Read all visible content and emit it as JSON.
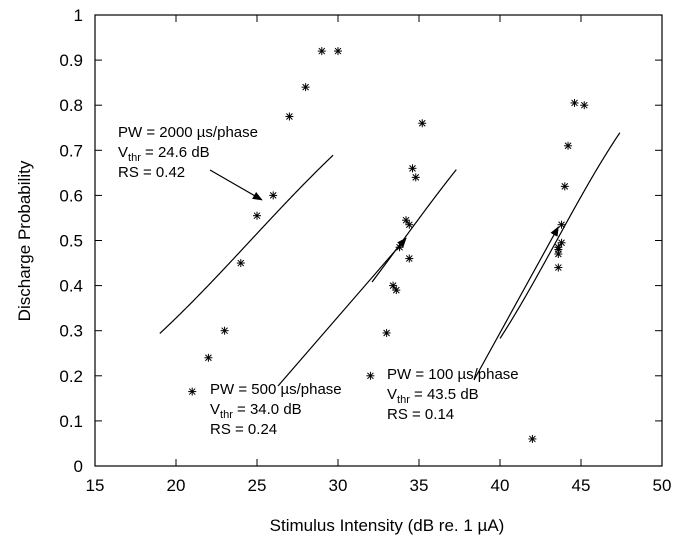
{
  "chart_data": {
    "type": "scatter",
    "xlabel": "Stimulus Intensity (dB re. 1 µA)",
    "ylabel": "Discharge Probability",
    "xlim": [
      15,
      50
    ],
    "ylim": [
      0,
      1
    ],
    "xticks": [
      "15",
      "20",
      "25",
      "30",
      "35",
      "40",
      "45",
      "50"
    ],
    "yticks": [
      "0",
      "0.1",
      "0.2",
      "0.3",
      "0.4",
      "0.5",
      "0.6",
      "0.7",
      "0.8",
      "0.9",
      "1"
    ],
    "grid": false,
    "legend": "none",
    "series": [
      {
        "points": [
          [
            21.0,
            0.165
          ],
          [
            22.0,
            0.24
          ],
          [
            23.0,
            0.3
          ],
          [
            24.0,
            0.45
          ],
          [
            25.0,
            0.555
          ],
          [
            26.0,
            0.6
          ],
          [
            27.0,
            0.775
          ],
          [
            28.0,
            0.84
          ],
          [
            29.0,
            0.92
          ],
          [
            30.0,
            0.92
          ]
        ],
        "fit": {
          "threshold": 24.6,
          "rs": 0.42,
          "x_range": [
            19.0,
            29.7
          ]
        }
      },
      {
        "points": [
          [
            32.0,
            0.2
          ],
          [
            33.0,
            0.295
          ],
          [
            33.4,
            0.4
          ],
          [
            33.6,
            0.39
          ],
          [
            33.8,
            0.485
          ],
          [
            34.2,
            0.545
          ],
          [
            34.4,
            0.535
          ],
          [
            34.4,
            0.46
          ],
          [
            34.6,
            0.66
          ],
          [
            34.8,
            0.64
          ],
          [
            35.2,
            0.76
          ]
        ],
        "fit": {
          "threshold": 34.0,
          "rs": 0.24,
          "x_range": [
            32.1,
            37.3
          ]
        }
      },
      {
        "points": [
          [
            42.0,
            0.06
          ],
          [
            43.6,
            0.48
          ],
          [
            43.6,
            0.485
          ],
          [
            43.6,
            0.47
          ],
          [
            43.8,
            0.495
          ],
          [
            43.8,
            0.535
          ],
          [
            43.6,
            0.44
          ],
          [
            44.0,
            0.62
          ],
          [
            44.2,
            0.71
          ],
          [
            44.6,
            0.805
          ],
          [
            45.2,
            0.8
          ]
        ],
        "fit": {
          "threshold": 43.5,
          "rs": 0.14,
          "x_range": [
            40.0,
            47.4
          ]
        }
      }
    ],
    "annotations": [
      {
        "pw_label": "PW = 2000 µs/phase",
        "vthr_symbol": "V",
        "vthr_sub": "thr",
        "vthr_value": " = 24.6 dB",
        "rs_label": "RS = 0.42",
        "arrow_to": [
          25.3,
          0.59
        ]
      },
      {
        "pw_label": "PW = 500 µs/phase",
        "vthr_symbol": "V",
        "vthr_sub": "thr",
        "vthr_value": " = 34.0 dB",
        "rs_label": "RS = 0.24",
        "arrow_to": [
          34.2,
          0.505
        ]
      },
      {
        "pw_label": "PW = 100 µs/phase",
        "vthr_symbol": "V",
        "vthr_sub": "thr",
        "vthr_value": " = 43.5 dB",
        "rs_label": "RS = 0.14",
        "arrow_to": [
          43.6,
          0.53
        ]
      }
    ]
  }
}
